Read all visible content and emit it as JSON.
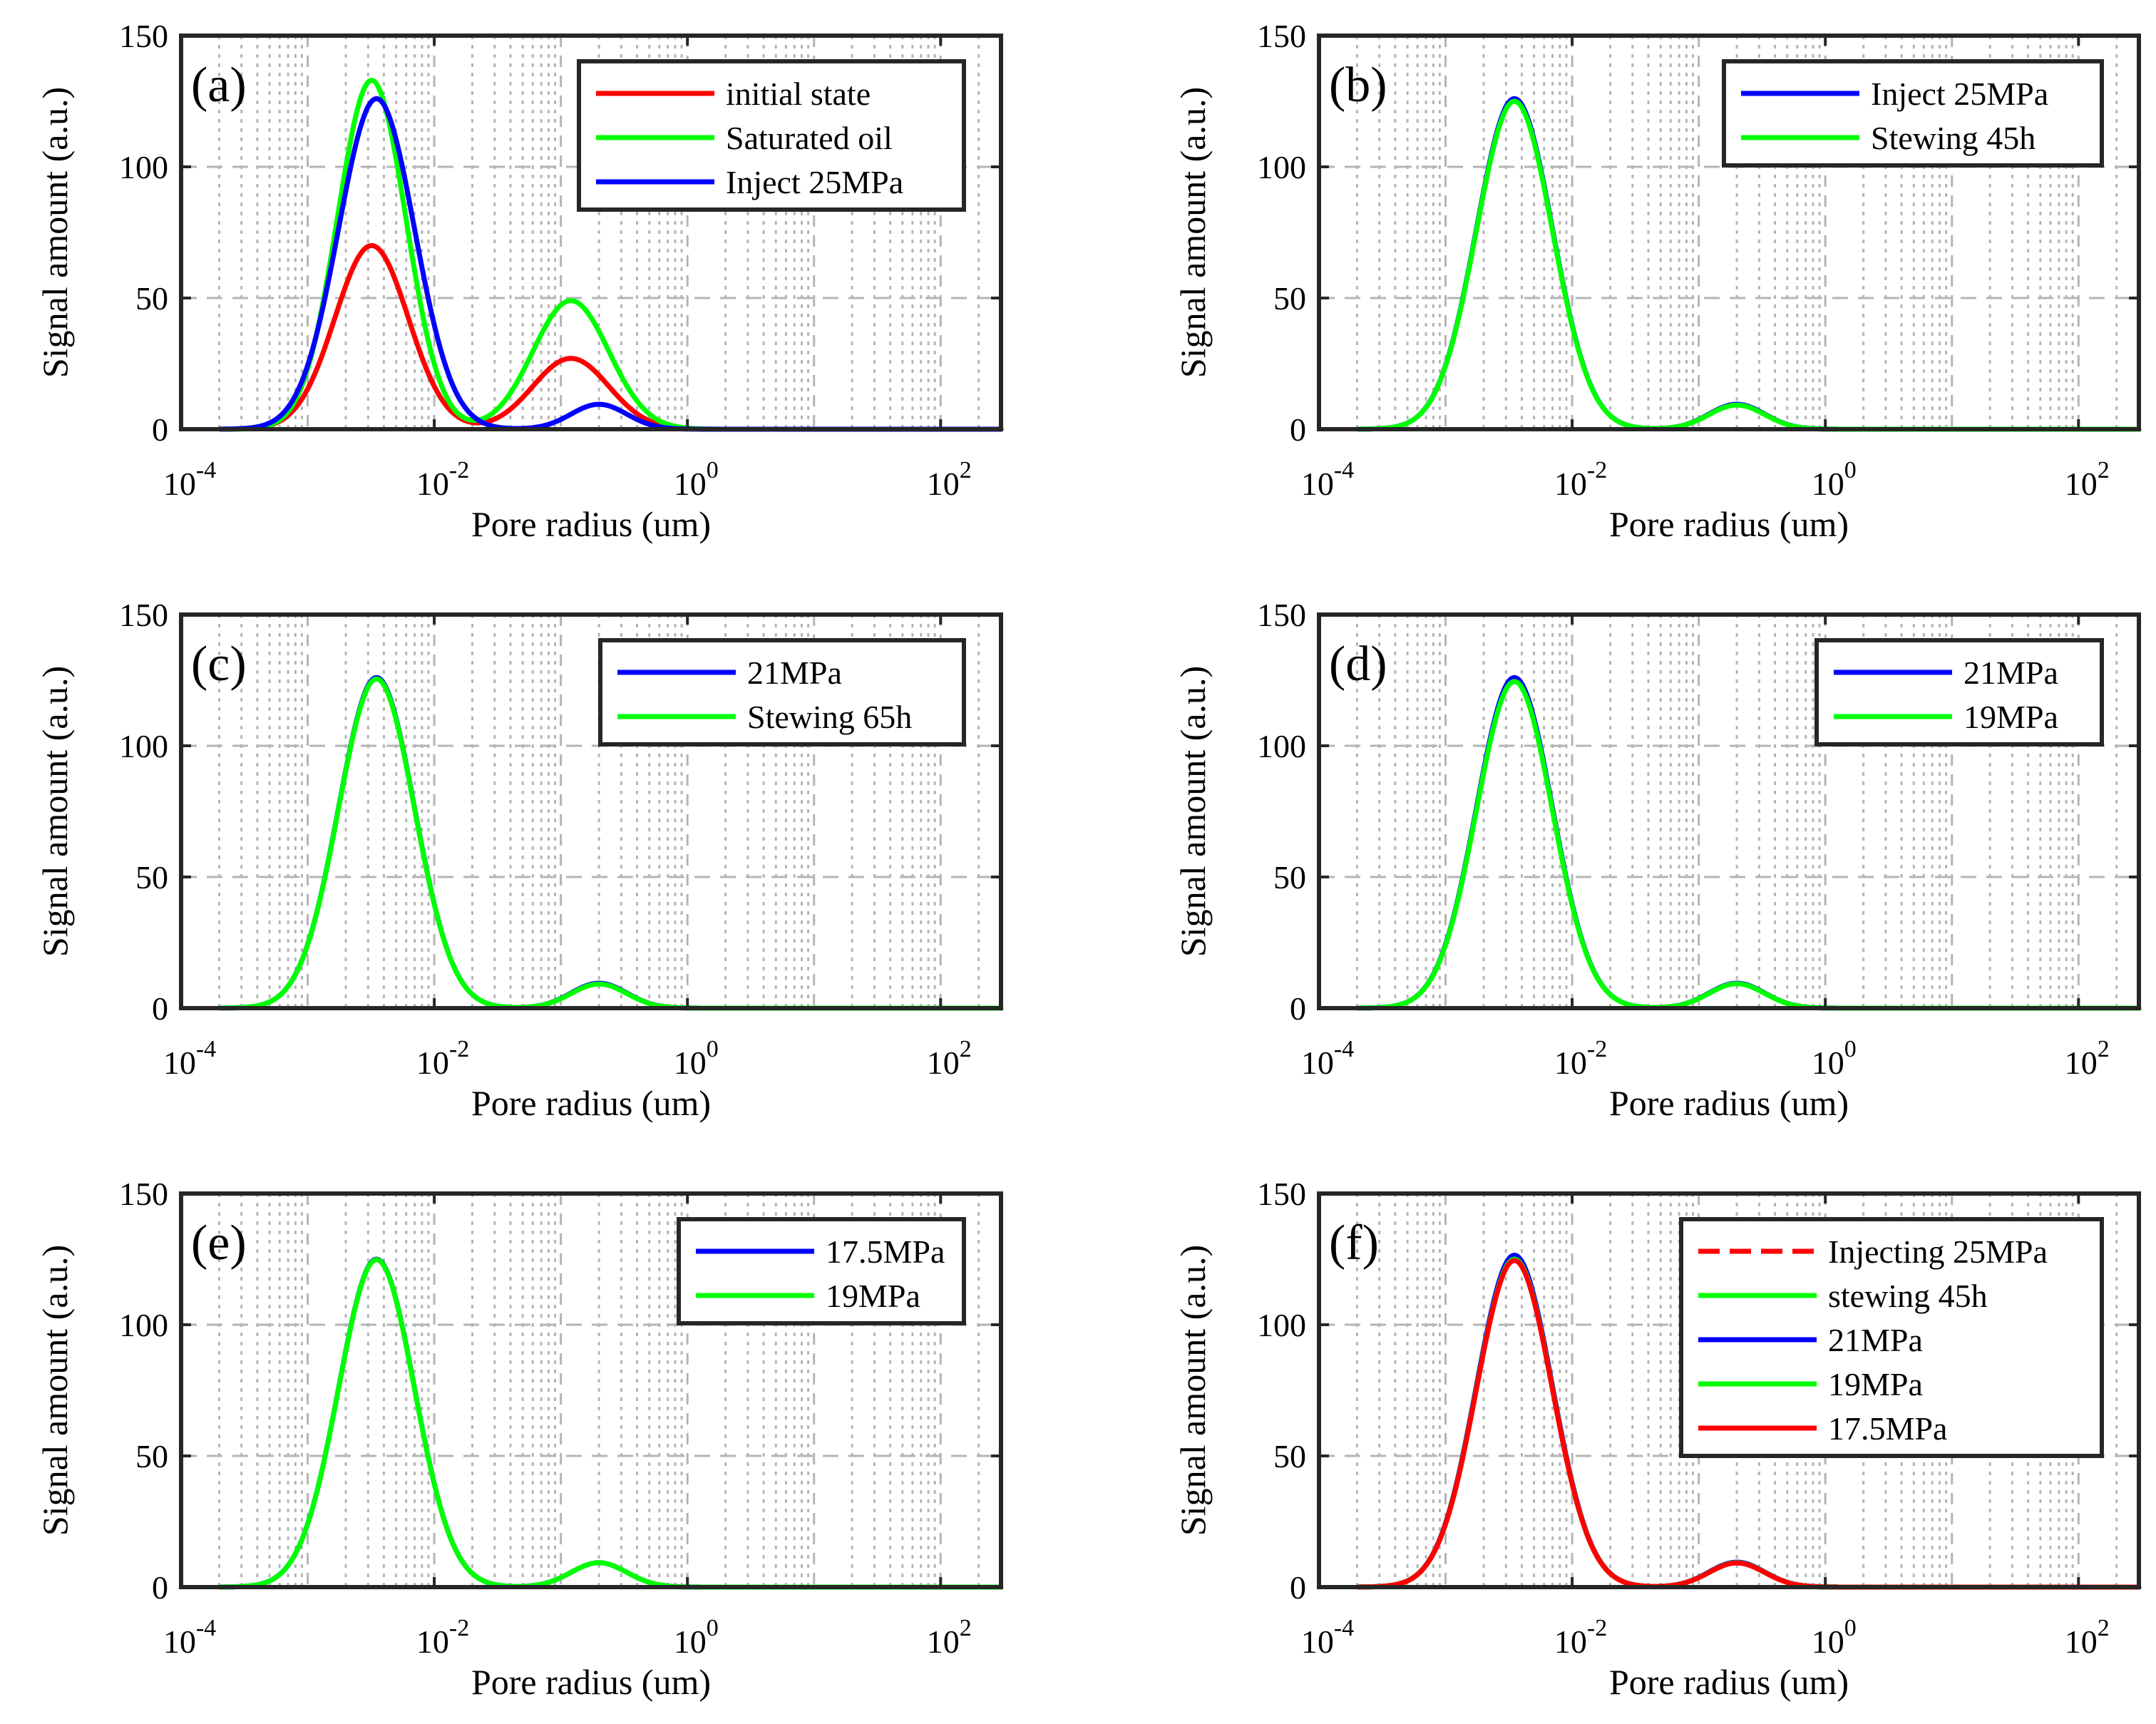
{
  "figure": {
    "colors": {
      "red": "#ff0000",
      "green": "#00ff00",
      "blue": "#0000ff",
      "axis": "#262626",
      "grid": "#b4b4b4"
    }
  },
  "chart_data": [
    {
      "panel": "(a)",
      "type": "line",
      "xscale": "log",
      "xlim": [
        0.0001,
        300
      ],
      "ylim": [
        0,
        150
      ],
      "xticks": [
        {
          "base": "10",
          "exp": "-4"
        },
        {
          "base": "10",
          "exp": "-2"
        },
        {
          "base": "10",
          "exp": "0"
        },
        {
          "base": "10",
          "exp": "2"
        }
      ],
      "yticks": [
        "0",
        "50",
        "100",
        "150"
      ],
      "xlabel": "Pore radius (um)",
      "ylabel": "Signal amount (a.u.)",
      "legend_position": "top-right",
      "series": [
        {
          "name": "initial state",
          "color": "#ff0000",
          "dash": "solid",
          "peaks": [
            {
              "center": 0.0032,
              "height": 70,
              "sigma": 0.29
            },
            {
              "center": 0.12,
              "height": 27,
              "sigma": 0.3
            }
          ],
          "x": [
            0.0002,
            0.0005,
            0.001,
            0.002,
            0.0032,
            0.005,
            0.01,
            0.025,
            0.05,
            0.12,
            0.3,
            0.6,
            1,
            10,
            300
          ],
          "y": [
            0,
            2,
            17,
            55,
            70,
            60,
            25,
            6,
            13,
            27,
            15,
            0,
            0,
            0,
            0
          ]
        },
        {
          "name": "Saturated oil",
          "color": "#00ff00",
          "dash": "solid",
          "peaks": [
            {
              "center": 0.0032,
              "height": 133,
              "sigma": 0.27
            },
            {
              "center": 0.12,
              "height": 49,
              "sigma": 0.3
            }
          ],
          "x": [
            0.0002,
            0.0005,
            0.001,
            0.002,
            0.0032,
            0.005,
            0.01,
            0.025,
            0.05,
            0.12,
            0.3,
            0.6,
            1,
            10,
            300
          ],
          "y": [
            0,
            2,
            33,
            108,
            133,
            112,
            42,
            11,
            24,
            49,
            29,
            0,
            0,
            0,
            0
          ]
        },
        {
          "name": "Inject 25MPa",
          "color": "#0000ff",
          "dash": "solid",
          "peaks": [
            {
              "center": 0.0035,
              "height": 126,
              "sigma": 0.3
            },
            {
              "center": 0.2,
              "height": 9.5,
              "sigma": 0.22
            }
          ],
          "x": [
            0.0002,
            0.0005,
            0.001,
            0.002,
            0.0035,
            0.005,
            0.01,
            0.03,
            0.06,
            0.2,
            0.4,
            0.6,
            1,
            10,
            300
          ],
          "y": [
            0,
            4,
            38,
            105,
            126,
            113,
            58,
            8,
            4,
            9.5,
            5,
            0,
            0,
            0,
            0
          ]
        }
      ]
    },
    {
      "panel": "(b)",
      "type": "line",
      "xscale": "log",
      "xlim": [
        0.0001,
        300
      ],
      "ylim": [
        0,
        150
      ],
      "xticks": [
        {
          "base": "10",
          "exp": "-4"
        },
        {
          "base": "10",
          "exp": "-2"
        },
        {
          "base": "10",
          "exp": "0"
        },
        {
          "base": "10",
          "exp": "2"
        }
      ],
      "yticks": [
        "0",
        "50",
        "100",
        "150"
      ],
      "xlabel": "Pore radius (um)",
      "ylabel": "Signal amount (a.u.)",
      "legend_position": "top-right",
      "series": [
        {
          "name": "Inject 25MPa",
          "color": "#0000ff",
          "dash": "solid",
          "peaks": [
            {
              "center": 0.0035,
              "height": 126,
              "sigma": 0.3
            },
            {
              "center": 0.2,
              "height": 9.5,
              "sigma": 0.22
            }
          ],
          "x": [
            0.0002,
            0.001,
            0.002,
            0.0035,
            0.005,
            0.01,
            0.03,
            0.06,
            0.2,
            0.6,
            1,
            300
          ],
          "y": [
            0,
            38,
            105,
            126,
            113,
            58,
            8,
            4,
            9.5,
            0,
            0,
            0
          ]
        },
        {
          "name": "Stewing 45h",
          "color": "#00ff00",
          "dash": "solid",
          "peaks": [
            {
              "center": 0.0035,
              "height": 125,
              "sigma": 0.3
            },
            {
              "center": 0.2,
              "height": 9.2,
              "sigma": 0.22
            }
          ],
          "x": [
            0.0002,
            0.001,
            0.002,
            0.0035,
            0.005,
            0.01,
            0.03,
            0.06,
            0.2,
            0.6,
            1,
            300
          ],
          "y": [
            0,
            37,
            104,
            125,
            112,
            57,
            8,
            4,
            9.2,
            0,
            0,
            0
          ]
        }
      ]
    },
    {
      "panel": "(c)",
      "type": "line",
      "xscale": "log",
      "xlim": [
        0.0001,
        300
      ],
      "ylim": [
        0,
        150
      ],
      "xticks": [
        {
          "base": "10",
          "exp": "-4"
        },
        {
          "base": "10",
          "exp": "-2"
        },
        {
          "base": "10",
          "exp": "0"
        },
        {
          "base": "10",
          "exp": "2"
        }
      ],
      "yticks": [
        "0",
        "50",
        "100",
        "150"
      ],
      "xlabel": "Pore radius (um)",
      "ylabel": "Signal amount (a.u.)",
      "legend_position": "top-right",
      "series": [
        {
          "name": "21MPa",
          "color": "#0000ff",
          "dash": "solid",
          "peaks": [
            {
              "center": 0.0035,
              "height": 126,
              "sigma": 0.3
            },
            {
              "center": 0.2,
              "height": 9.5,
              "sigma": 0.22
            }
          ],
          "x": [
            0.0002,
            0.001,
            0.002,
            0.0035,
            0.005,
            0.01,
            0.03,
            0.06,
            0.2,
            0.6,
            1,
            300
          ],
          "y": [
            0,
            38,
            105,
            126,
            113,
            58,
            8,
            4,
            9.5,
            0,
            0,
            0
          ]
        },
        {
          "name": "Stewing 65h",
          "color": "#00ff00",
          "dash": "solid",
          "peaks": [
            {
              "center": 0.0035,
              "height": 125.5,
              "sigma": 0.3
            },
            {
              "center": 0.2,
              "height": 9.2,
              "sigma": 0.22
            }
          ],
          "x": [
            0.0002,
            0.001,
            0.002,
            0.0035,
            0.005,
            0.01,
            0.03,
            0.06,
            0.2,
            0.6,
            1,
            300
          ],
          "y": [
            0,
            37,
            104,
            125.5,
            112,
            57,
            8,
            4,
            9.2,
            0,
            0,
            0
          ]
        }
      ]
    },
    {
      "panel": "(d)",
      "type": "line",
      "xscale": "log",
      "xlim": [
        0.0001,
        300
      ],
      "ylim": [
        0,
        150
      ],
      "xticks": [
        {
          "base": "10",
          "exp": "-4"
        },
        {
          "base": "10",
          "exp": "-2"
        },
        {
          "base": "10",
          "exp": "0"
        },
        {
          "base": "10",
          "exp": "2"
        }
      ],
      "yticks": [
        "0",
        "50",
        "100",
        "150"
      ],
      "xlabel": "Pore radius (um)",
      "ylabel": "Signal amount (a.u.)",
      "legend_position": "top-right",
      "series": [
        {
          "name": "21MPa",
          "color": "#0000ff",
          "dash": "solid",
          "peaks": [
            {
              "center": 0.0035,
              "height": 126,
              "sigma": 0.3
            },
            {
              "center": 0.2,
              "height": 9.5,
              "sigma": 0.22
            }
          ],
          "x": [
            0.0002,
            0.001,
            0.002,
            0.0035,
            0.005,
            0.01,
            0.03,
            0.06,
            0.2,
            0.6,
            1,
            300
          ],
          "y": [
            0,
            38,
            105,
            126,
            113,
            58,
            8,
            4,
            9.5,
            0,
            0,
            0
          ]
        },
        {
          "name": "19MPa",
          "color": "#00ff00",
          "dash": "solid",
          "peaks": [
            {
              "center": 0.0035,
              "height": 124.5,
              "sigma": 0.3
            },
            {
              "center": 0.2,
              "height": 9.3,
              "sigma": 0.22
            }
          ],
          "x": [
            0.0002,
            0.001,
            0.002,
            0.0035,
            0.005,
            0.01,
            0.03,
            0.06,
            0.2,
            0.6,
            1,
            300
          ],
          "y": [
            0,
            37,
            103,
            124.5,
            111,
            57,
            8,
            4,
            9.3,
            0,
            0,
            0
          ]
        }
      ]
    },
    {
      "panel": "(e)",
      "type": "line",
      "xscale": "log",
      "xlim": [
        0.0001,
        300
      ],
      "ylim": [
        0,
        150
      ],
      "xticks": [
        {
          "base": "10",
          "exp": "-4"
        },
        {
          "base": "10",
          "exp": "-2"
        },
        {
          "base": "10",
          "exp": "0"
        },
        {
          "base": "10",
          "exp": "2"
        }
      ],
      "yticks": [
        "0",
        "50",
        "100",
        "150"
      ],
      "xlabel": "Pore radius (um)",
      "ylabel": "Signal amount (a.u.)",
      "legend_position": "top-right",
      "series": [
        {
          "name": "17.5MPa",
          "color": "#0000ff",
          "dash": "solid",
          "peaks": [
            {
              "center": 0.0035,
              "height": 125,
              "sigma": 0.3
            },
            {
              "center": 0.2,
              "height": 9.3,
              "sigma": 0.22
            }
          ],
          "x": [
            0.0002,
            0.001,
            0.002,
            0.0035,
            0.005,
            0.01,
            0.03,
            0.06,
            0.2,
            0.6,
            1,
            300
          ],
          "y": [
            0,
            37,
            104,
            125,
            112,
            57,
            8,
            4,
            9.3,
            0,
            0,
            0
          ]
        },
        {
          "name": "19MPa",
          "color": "#00ff00",
          "dash": "solid",
          "peaks": [
            {
              "center": 0.0035,
              "height": 124.8,
              "sigma": 0.3
            },
            {
              "center": 0.2,
              "height": 9.3,
              "sigma": 0.22
            }
          ],
          "x": [
            0.0002,
            0.001,
            0.002,
            0.0035,
            0.005,
            0.01,
            0.03,
            0.06,
            0.2,
            0.6,
            1,
            300
          ],
          "y": [
            0,
            37,
            103,
            124.8,
            111,
            57,
            8,
            4,
            9.3,
            0,
            0,
            0
          ]
        }
      ]
    },
    {
      "panel": "(f)",
      "type": "line",
      "xscale": "log",
      "xlim": [
        0.0001,
        300
      ],
      "ylim": [
        0,
        150
      ],
      "xticks": [
        {
          "base": "10",
          "exp": "-4"
        },
        {
          "base": "10",
          "exp": "-2"
        },
        {
          "base": "10",
          "exp": "0"
        },
        {
          "base": "10",
          "exp": "2"
        }
      ],
      "yticks": [
        "0",
        "50",
        "100",
        "150"
      ],
      "xlabel": "Pore radius (um)",
      "ylabel": "Signal amount (a.u.)",
      "legend_position": "top-right",
      "series": [
        {
          "name": "Injecting 25MPa",
          "color": "#ff0000",
          "dash": "dashed",
          "peaks": [
            {
              "center": 0.0035,
              "height": 126,
              "sigma": 0.3
            },
            {
              "center": 0.2,
              "height": 9.5,
              "sigma": 0.22
            }
          ],
          "x": [
            0.0002,
            0.001,
            0.002,
            0.0035,
            0.005,
            0.01,
            0.03,
            0.06,
            0.2,
            0.6,
            1,
            300
          ],
          "y": [
            0,
            38,
            105,
            126,
            113,
            58,
            8,
            4,
            9.5,
            0,
            0,
            0
          ]
        },
        {
          "name": "stewing 45h",
          "color": "#00ff00",
          "dash": "solid",
          "peaks": [
            {
              "center": 0.0035,
              "height": 125.5,
              "sigma": 0.3
            },
            {
              "center": 0.2,
              "height": 9.3,
              "sigma": 0.22
            }
          ],
          "x": [
            0.0002,
            0.001,
            0.002,
            0.0035,
            0.005,
            0.01,
            0.03,
            0.06,
            0.2,
            0.6,
            1,
            300
          ],
          "y": [
            0,
            37,
            104,
            125.5,
            112,
            57,
            8,
            4,
            9.3,
            0,
            0,
            0
          ]
        },
        {
          "name": "21MPa",
          "color": "#0000ff",
          "dash": "solid",
          "peaks": [
            {
              "center": 0.0035,
              "height": 126.5,
              "sigma": 0.3
            },
            {
              "center": 0.2,
              "height": 9.5,
              "sigma": 0.22
            }
          ],
          "x": [
            0.0002,
            0.001,
            0.002,
            0.0035,
            0.005,
            0.01,
            0.03,
            0.06,
            0.2,
            0.6,
            1,
            300
          ],
          "y": [
            0,
            38,
            105,
            126.5,
            113,
            58,
            8,
            4,
            9.5,
            0,
            0,
            0
          ]
        },
        {
          "name": "19MPa",
          "color": "#00ff00",
          "dash": "solid",
          "peaks": [
            {
              "center": 0.0035,
              "height": 125,
              "sigma": 0.3
            },
            {
              "center": 0.2,
              "height": 9.3,
              "sigma": 0.22
            }
          ],
          "x": [
            0.0002,
            0.001,
            0.002,
            0.0035,
            0.005,
            0.01,
            0.03,
            0.06,
            0.2,
            0.6,
            1,
            300
          ],
          "y": [
            0,
            37,
            104,
            125,
            112,
            57,
            8,
            4,
            9.3,
            0,
            0,
            0
          ]
        },
        {
          "name": "17.5MPa",
          "color": "#ff0000",
          "dash": "solid",
          "peaks": [
            {
              "center": 0.0035,
              "height": 124.5,
              "sigma": 0.3
            },
            {
              "center": 0.2,
              "height": 9.2,
              "sigma": 0.22
            }
          ],
          "x": [
            0.0002,
            0.001,
            0.002,
            0.0035,
            0.005,
            0.01,
            0.03,
            0.06,
            0.2,
            0.6,
            1,
            300
          ],
          "y": [
            0,
            37,
            103,
            124.5,
            111,
            57,
            8,
            4,
            9.2,
            0,
            0,
            0
          ]
        }
      ]
    }
  ]
}
